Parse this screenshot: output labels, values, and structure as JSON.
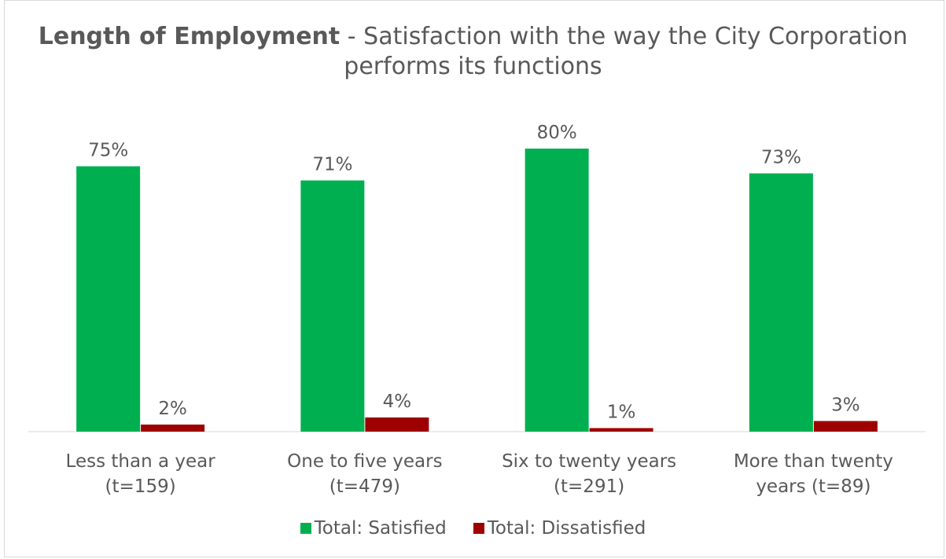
{
  "chart_data": {
    "type": "bar",
    "title_bold": "Length of Employment",
    "title_rest": " - Satisfaction with the way the City Corporation performs its functions",
    "categories": [
      [
        "Less than a year",
        "(t=159)"
      ],
      [
        "One to five years",
        "(t=479)"
      ],
      [
        "Six to twenty years",
        "(t=291)"
      ],
      [
        "More than twenty",
        "years (t=89)"
      ]
    ],
    "series": [
      {
        "name": "Total: Satisfied",
        "color": "#00b050",
        "values": [
          75,
          71,
          80,
          73
        ],
        "labels": [
          "75%",
          "71%",
          "80%",
          "73%"
        ]
      },
      {
        "name": "Total: Dissatisfied",
        "color": "#9e0000",
        "values": [
          2,
          4,
          1,
          3
        ],
        "labels": [
          "2%",
          "4%",
          "1%",
          "3%"
        ]
      }
    ],
    "ylim": [
      0,
      80
    ],
    "grid": false,
    "legend_position": "bottom"
  }
}
